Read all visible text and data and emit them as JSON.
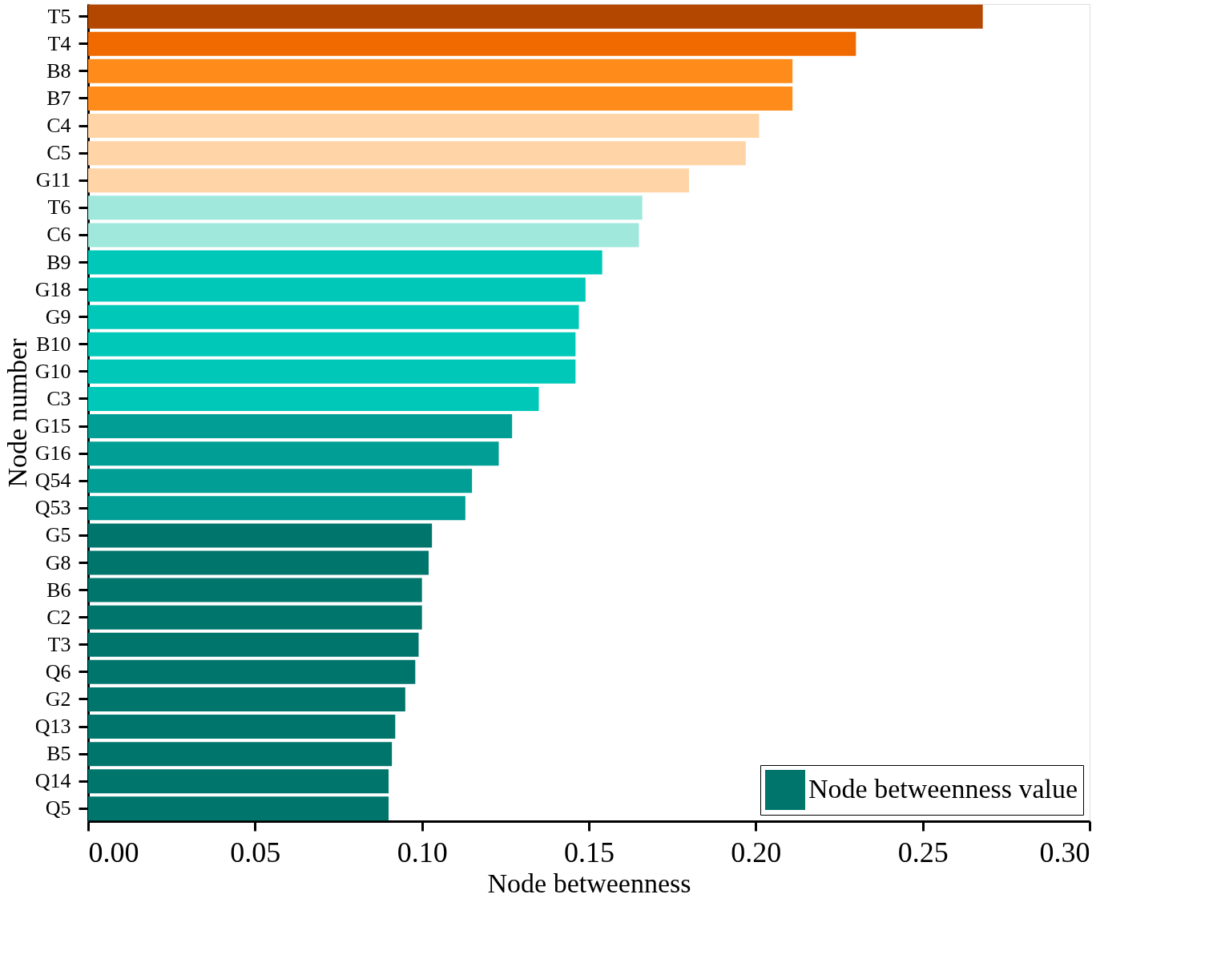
{
  "chart_data": {
    "type": "bar",
    "orientation": "horizontal",
    "xlabel": "Node betweenness",
    "ylabel": "Node number",
    "categories": [
      "T5",
      "T4",
      "B8",
      "B7",
      "C4",
      "C5",
      "G11",
      "T6",
      "C6",
      "B9",
      "G18",
      "G9",
      "B10",
      "G10",
      "C3",
      "G15",
      "G16",
      "Q54",
      "Q53",
      "G5",
      "G8",
      "B6",
      "C2",
      "T3",
      "Q6",
      "G2",
      "Q13",
      "B5",
      "Q14",
      "Q5"
    ],
    "series": [
      {
        "name": "Node betweenness value",
        "color": "#00756c",
        "values": [
          0.268,
          0.23,
          0.211,
          0.211,
          0.201,
          0.197,
          0.18,
          0.166,
          0.165,
          0.154,
          0.149,
          0.147,
          0.146,
          0.146,
          0.135,
          0.127,
          0.123,
          0.115,
          0.113,
          0.103,
          0.102,
          0.1,
          0.1,
          0.099,
          0.098,
          0.095,
          0.092,
          0.091,
          0.09,
          0.09
        ],
        "colors": [
          "#b34700",
          "#f06a00",
          "#ff8c1a",
          "#ff8c1a",
          "#ffd5a8",
          "#ffd5a8",
          "#ffd5a8",
          "#a0e8dc",
          "#a0e8dc",
          "#00c8b8",
          "#00c8b8",
          "#00c8b8",
          "#00c8b8",
          "#00c8b8",
          "#00c8b8",
          "#009e94",
          "#009e94",
          "#009e94",
          "#009e94",
          "#00756c",
          "#00756c",
          "#00756c",
          "#00756c",
          "#00756c",
          "#00756c",
          "#00756c",
          "#00756c",
          "#00756c",
          "#00756c",
          "#00756c"
        ]
      }
    ],
    "xlim": [
      0,
      0.3
    ],
    "xticks": [
      {
        "value": 0,
        "label": "0.00"
      },
      {
        "value": 0.05,
        "label": "0.05"
      },
      {
        "value": 0.1,
        "label": "0.10"
      },
      {
        "value": 0.15,
        "label": "0.15"
      },
      {
        "value": 0.2,
        "label": "0.20"
      },
      {
        "value": 0.25,
        "label": "0.25"
      },
      {
        "value": 0.3,
        "label": "0.30"
      }
    ],
    "grid": false,
    "legend": "bottom right"
  }
}
